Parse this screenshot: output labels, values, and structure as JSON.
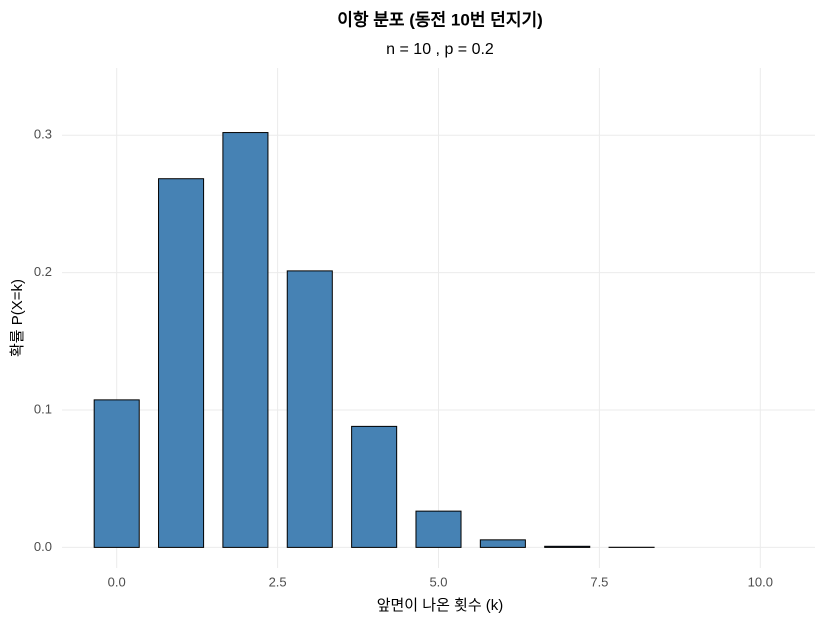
{
  "chart_data": {
    "type": "bar",
    "title": "이항 분포 (동전 10번 던지기)",
    "subtitle": "n = 10 , p = 0.2",
    "x_label": "앞면이 나온 횟수 (k)",
    "y_label": "확률 P(X=k)",
    "x": [
      0,
      1,
      2,
      3,
      4,
      5,
      6,
      7,
      8,
      9,
      10
    ],
    "values": [
      0.1074,
      0.2684,
      0.302,
      0.2013,
      0.0881,
      0.0264,
      0.0055,
      0.0008,
      0.0001,
      0.0,
      0.0
    ],
    "color": "#4682b4",
    "edge_color": "#000000",
    "bar_width": 0.7,
    "xlim": [
      -0.85,
      10.85
    ],
    "xticks": [
      {
        "value": 0,
        "label": "0.0"
      },
      2.5,
      {
        "value": 5,
        "label": "5.0"
      },
      7.5,
      {
        "value": 10,
        "label": "10.0"
      }
    ],
    "ylim": [
      -0.015,
      0.349
    ],
    "yticks": [
      {
        "value": 0,
        "label": "0.0"
      },
      0.1,
      0.2,
      0.3
    ],
    "grid": true
  }
}
